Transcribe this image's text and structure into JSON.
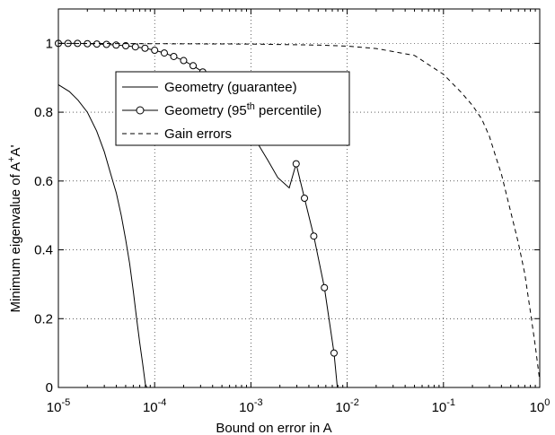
{
  "chart_data": {
    "type": "line",
    "title": "",
    "xlabel": "Bound on error in A",
    "ylabel_parts": {
      "pre": "Minimum eigenvalue of A",
      "sup1": "+",
      "mid": "A",
      "post": "'"
    },
    "x_scale": "log",
    "xlim": [
      1e-05,
      1
    ],
    "ylim": [
      0,
      1.1
    ],
    "grid": true,
    "legend_position": "upper-left-inside",
    "x_ticks": [
      {
        "base": "10",
        "exp": "-5",
        "value": 1e-05
      },
      {
        "base": "10",
        "exp": "-4",
        "value": 0.0001
      },
      {
        "base": "10",
        "exp": "-3",
        "value": 0.001
      },
      {
        "base": "10",
        "exp": "-2",
        "value": 0.01
      },
      {
        "base": "10",
        "exp": "-1",
        "value": 0.1
      },
      {
        "base": "10",
        "exp": "0",
        "value": 1
      }
    ],
    "y_ticks": [
      {
        "label": "0",
        "value": 0
      },
      {
        "label": "0.2",
        "value": 0.2
      },
      {
        "label": "0.4",
        "value": 0.4
      },
      {
        "label": "0.6",
        "value": 0.6
      },
      {
        "label": "0.8",
        "value": 0.8
      },
      {
        "label": "1",
        "value": 1
      }
    ],
    "series": [
      {
        "name": "Geometry (guarantee)",
        "style": "solid",
        "color": "#000000",
        "points": [
          [
            1e-05,
            0.88
          ],
          [
            1.3e-05,
            0.86
          ],
          [
            1.6e-05,
            0.835
          ],
          [
            2e-05,
            0.8
          ],
          [
            2.5e-05,
            0.745
          ],
          [
            3e-05,
            0.685
          ],
          [
            3.5e-05,
            0.62
          ],
          [
            4e-05,
            0.565
          ],
          [
            4.5e-05,
            0.5
          ],
          [
            5e-05,
            0.43
          ],
          [
            5.5e-05,
            0.36
          ],
          [
            6e-05,
            0.28
          ],
          [
            6.5e-05,
            0.2
          ],
          [
            7e-05,
            0.13
          ],
          [
            7.5e-05,
            0.07
          ],
          [
            8e-05,
            0.01
          ],
          [
            8.3e-05,
            0.0
          ]
        ]
      },
      {
        "name_pre": "Geometry (95",
        "name_sup": "th",
        "name_post": " percentile)",
        "style": "solid-circle",
        "color": "#000000",
        "points": [
          [
            1e-05,
            1.0
          ],
          [
            1.26e-05,
            1.0
          ],
          [
            1.58e-05,
            1.0
          ],
          [
            2e-05,
            0.999
          ],
          [
            2.51e-05,
            0.998
          ],
          [
            3.16e-05,
            0.997
          ],
          [
            3.98e-05,
            0.995
          ],
          [
            5.01e-05,
            0.993
          ],
          [
            6.31e-05,
            0.99
          ],
          [
            7.94e-05,
            0.986
          ],
          [
            0.0001,
            0.98
          ],
          [
            0.000126,
            0.972
          ],
          [
            0.000158,
            0.962
          ],
          [
            0.0002,
            0.95
          ],
          [
            0.000251,
            0.935
          ],
          [
            0.000316,
            0.917
          ],
          [
            0.000398,
            0.895
          ],
          [
            0.000501,
            0.867
          ],
          [
            0.000631,
            0.833
          ],
          [
            0.00075,
            0.79
          ],
          [
            0.00095,
            0.75
          ],
          [
            0.0012,
            0.705
          ],
          [
            0.0015,
            0.66
          ],
          [
            0.0019,
            0.61
          ],
          [
            0.0025,
            0.58
          ],
          [
            0.00295,
            0.65
          ],
          [
            0.0036,
            0.55
          ],
          [
            0.0045,
            0.44
          ],
          [
            0.0058,
            0.29
          ],
          [
            0.0073,
            0.1
          ],
          [
            0.0079,
            0.0
          ]
        ],
        "markers_x": [
          1e-05,
          1.26e-05,
          1.58e-05,
          2e-05,
          2.51e-05,
          3.16e-05,
          3.98e-05,
          5.01e-05,
          6.31e-05,
          7.94e-05,
          0.0001,
          0.000126,
          0.000158,
          0.0002,
          0.000251,
          0.000316,
          0.000398,
          0.000501,
          0.00295,
          0.0036,
          0.0045,
          0.0058,
          0.0073
        ]
      },
      {
        "name": "Gain errors",
        "style": "dashed",
        "color": "#000000",
        "points": [
          [
            1e-05,
            1.0
          ],
          [
            0.0001,
            0.999
          ],
          [
            0.001,
            0.998
          ],
          [
            0.005,
            0.995
          ],
          [
            0.01,
            0.992
          ],
          [
            0.02,
            0.985
          ],
          [
            0.05,
            0.965
          ],
          [
            0.1,
            0.91
          ],
          [
            0.15,
            0.86
          ],
          [
            0.2,
            0.82
          ],
          [
            0.25,
            0.78
          ],
          [
            0.3,
            0.73
          ],
          [
            0.35,
            0.67
          ],
          [
            0.4,
            0.62
          ],
          [
            0.5,
            0.51
          ],
          [
            0.6,
            0.42
          ],
          [
            0.7,
            0.33
          ],
          [
            0.8,
            0.22
          ],
          [
            0.9,
            0.12
          ],
          [
            1.0,
            0.02
          ]
        ]
      }
    ]
  }
}
